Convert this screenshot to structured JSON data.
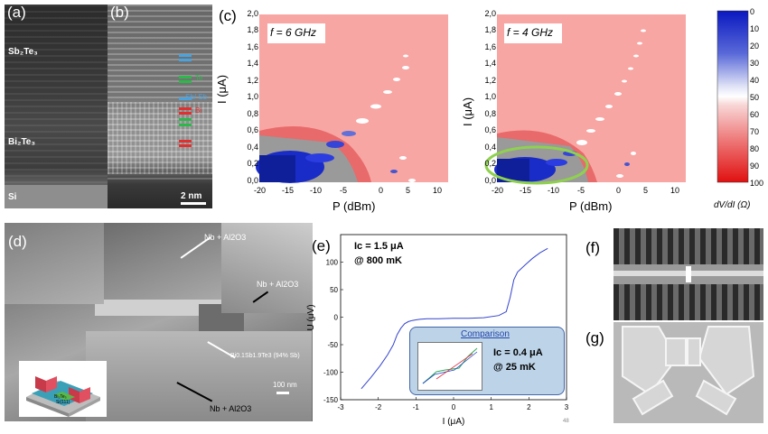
{
  "panels": {
    "a": {
      "label": "(a)",
      "sb_label": "Sb₂Te₃",
      "bi_label": "Bi₂Te₃",
      "si_label": "Si"
    },
    "b": {
      "label": "(b)",
      "scale_label": "2 nm",
      "markers": [
        {
          "color": "#4aa3df"
        },
        {
          "color": "#2db84a",
          "text": "Te"
        },
        {
          "color": "#4aa3df",
          "text": "Sb/ Sb"
        },
        {
          "color": "#e03030",
          "text": "Bi"
        },
        {
          "color": "#2db84a"
        },
        {
          "color": "#e03030"
        }
      ]
    },
    "c": {
      "label": "(c)",
      "map1_freq": "f = 6 GHz",
      "map2_freq": "f = 4 GHz",
      "x_label": "P (dBm)",
      "y_label": "I (μA)",
      "x_ticks": [
        "-20",
        "-15",
        "-10",
        "-5",
        "0",
        "5",
        "10"
      ],
      "y_ticks": [
        "0,0",
        "0,2",
        "0,4",
        "0,6",
        "0,8",
        "1,0",
        "1,2",
        "1,4",
        "1,6",
        "1,8",
        "2,0"
      ],
      "colorbar_ticks": [
        "0",
        "10",
        "20",
        "30",
        "40",
        "50",
        "60",
        "70",
        "80",
        "90",
        "100"
      ],
      "colorbar_label": "dV/dI (Ω)",
      "colors": {
        "low": "#1020c8",
        "mid": "#ffffff",
        "high": "#e81818",
        "highlight": "#8fd14f"
      }
    },
    "d": {
      "label": "(d)",
      "annotations": [
        "Nb + Al2O3",
        "Nb + Al2O3",
        "Bi0.1Sb1.9Te3 (94% Sb)",
        "Nb + Al2O3"
      ],
      "scale_label": "100 nm",
      "inset_labels": [
        "Bi₂Te₃",
        "Si(111)"
      ]
    },
    "e": {
      "label": "(e)",
      "ic_main": "Ic = 1.5 μA",
      "temp_main": "@ 800 mK",
      "comparison_title": "Comparison",
      "ic_inset": "Ic = 0.4 μA",
      "temp_inset": "@ 25 mK",
      "page_number": "48"
    },
    "f": {
      "label": "(f)"
    },
    "g": {
      "label": "(g)"
    }
  },
  "chart_data": [
    {
      "type": "line",
      "panel": "e",
      "xlabel": "I (μA)",
      "ylabel": "U (μV)",
      "xlim": [
        -3,
        3
      ],
      "ylim": [
        -150,
        150
      ],
      "x_ticks": [
        -3,
        -2,
        -1,
        0,
        1,
        2,
        3
      ],
      "y_ticks": [
        -150,
        -100,
        -50,
        0,
        50,
        100
      ],
      "series": [
        {
          "color": "#3344cc",
          "x": [
            -2.45,
            -2.2,
            -1.95,
            -1.75,
            -1.6,
            -1.5,
            -1.4,
            -1.3,
            -1.2,
            -1.1,
            -1.0,
            -0.9,
            -0.7,
            -0.4,
            0,
            0.4,
            0.8,
            1.2,
            1.4,
            1.5,
            1.6,
            1.7,
            1.9,
            2.1,
            2.3,
            2.5
          ],
          "y": [
            -130,
            -110,
            -88,
            -68,
            -50,
            -32,
            -20,
            -12,
            -8,
            -6,
            -5,
            -4,
            -3,
            -3,
            -2,
            -2,
            -1,
            3,
            10,
            35,
            68,
            82,
            95,
            107,
            117,
            125
          ]
        }
      ]
    }
  ]
}
